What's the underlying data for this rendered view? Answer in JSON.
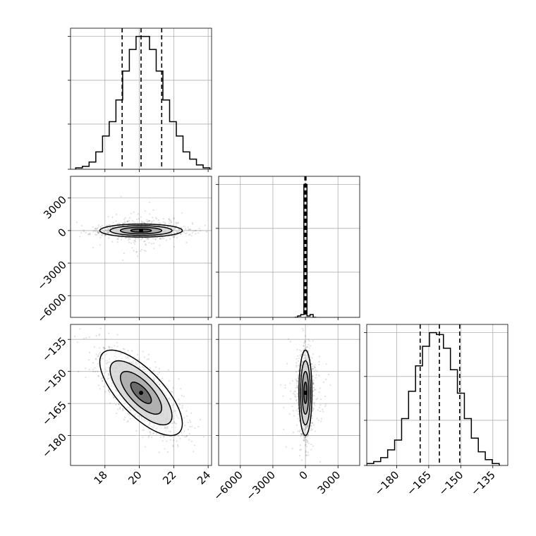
{
  "chart_data": {
    "type": "corner",
    "parameters": [
      {
        "name": "",
        "range": [
          16.0,
          24.2
        ],
        "ticks": [
          18,
          20,
          22,
          24
        ],
        "quantiles": [
          19.0,
          20.1,
          21.3
        ],
        "histogram": {
          "range": [
            16.3,
            24.1
          ],
          "counts": [
            1,
            2,
            5,
            12,
            23,
            33,
            48,
            68,
            83,
            92,
            92,
            83,
            68,
            48,
            33,
            23,
            12,
            7,
            3,
            1
          ]
        }
      },
      {
        "name": "",
        "range": [
          -8000,
          5000
        ],
        "ticks": [
          -6000,
          -3000,
          0,
          3000
        ],
        "quantiles": [
          -50,
          0,
          50
        ],
        "histogram": {
          "range": [
            -1000,
            1000
          ],
          "counts": [
            0,
            1,
            2,
            95,
            1,
            2,
            0
          ]
        }
      },
      {
        "name": "",
        "range": [
          -194,
          -128
        ],
        "ticks": [
          -180,
          -165,
          -150,
          -135
        ],
        "quantiles": [
          -169,
          -160,
          -150.5
        ],
        "histogram": {
          "range": [
            -194,
            -132
          ],
          "counts": [
            1,
            2,
            4,
            8,
            13,
            24,
            38,
            51,
            61,
            68,
            67,
            60,
            49,
            37,
            24,
            14,
            7,
            3,
            1
          ]
        }
      }
    ],
    "pairs": [
      {
        "x": 0,
        "y": 1,
        "mean": [
          20.1,
          0
        ],
        "sd": [
          1.2,
          300
        ],
        "corr": 0.0,
        "tail_sd": [
          1.2,
          900
        ]
      },
      {
        "x": 0,
        "y": 2,
        "mean": [
          20.1,
          -160
        ],
        "sd": [
          1.2,
          10
        ],
        "corr": -0.72
      },
      {
        "x": 1,
        "y": 2,
        "mean": [
          0,
          -160
        ],
        "sd": [
          300,
          10
        ],
        "corr": 0.0,
        "tail_sd": [
          900,
          10
        ]
      }
    ],
    "contour_levels_sigma": [
      0.5,
      1.0,
      1.5,
      2.0
    ],
    "grid": true
  }
}
